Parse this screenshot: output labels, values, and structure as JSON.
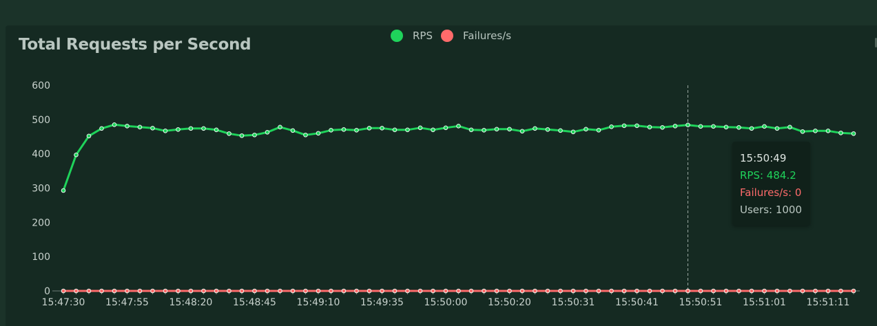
{
  "chart_data": {
    "type": "line",
    "title": "Total Requests per Second",
    "legend_position": "top-center",
    "ylim": [
      0,
      600
    ],
    "yticks": [
      0,
      100,
      200,
      300,
      400,
      500,
      600
    ],
    "x_tick_labels": [
      "15:47:30",
      "15:47:55",
      "15:48:20",
      "15:48:45",
      "15:49:10",
      "15:49:35",
      "15:50:00",
      "15:50:20",
      "15:50:31",
      "15:50:41",
      "15:50:51",
      "15:51:01",
      "15:51:11"
    ],
    "grid": false,
    "series": [
      {
        "name": "RPS",
        "color": "#1fd35b",
        "values": [
          293,
          397,
          452,
          474,
          485,
          481,
          478,
          475,
          467,
          471,
          474,
          474,
          470,
          459,
          453,
          455,
          463,
          478,
          468,
          455,
          460,
          469,
          471,
          469,
          475,
          475,
          470,
          470,
          476,
          470,
          476,
          481,
          470,
          469,
          472,
          472,
          466,
          474,
          471,
          468,
          464,
          472,
          469,
          479,
          482,
          482,
          478,
          477,
          481,
          484.2,
          480,
          480,
          478,
          477,
          474,
          480,
          474,
          478,
          465,
          467,
          467,
          461,
          459
        ]
      },
      {
        "name": "Failures/s",
        "color": "#ff6b6b",
        "values": [
          0,
          0,
          0,
          0,
          0,
          0,
          0,
          0,
          0,
          0,
          0,
          0,
          0,
          0,
          0,
          0,
          0,
          0,
          0,
          0,
          0,
          0,
          0,
          0,
          0,
          0,
          0,
          0,
          0,
          0,
          0,
          0,
          0,
          0,
          0,
          0,
          0,
          0,
          0,
          0,
          0,
          0,
          0,
          0,
          0,
          0,
          0,
          0,
          0,
          0,
          0,
          0,
          0,
          0,
          0,
          0,
          0,
          0,
          0,
          0,
          0,
          0,
          0
        ]
      }
    ],
    "tooltip": {
      "time": "15:50:49",
      "rps_text": "RPS: 484.2",
      "failures_text": "Failures/s: 0",
      "users_text": "Users: 1000",
      "index": 49
    }
  }
}
